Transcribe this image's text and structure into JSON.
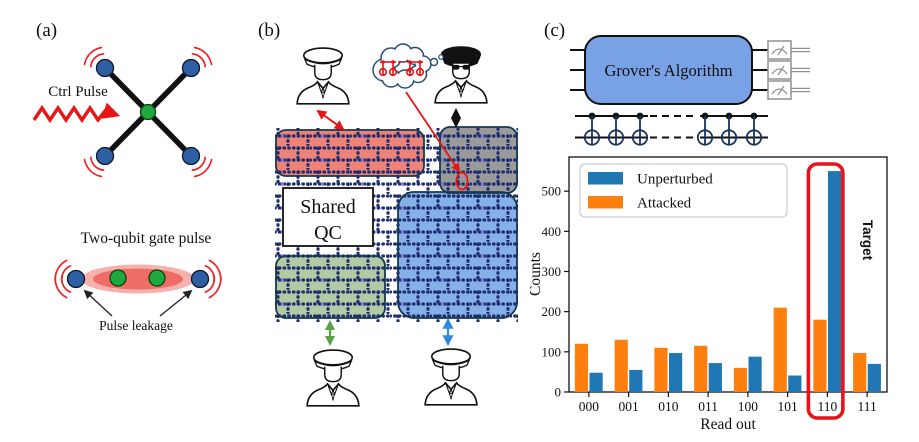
{
  "panel_a": {
    "label": "(a)",
    "ctrl_pulse_label": "Ctrl Pulse",
    "two_qubit_title": "Two-qubit gate pulse",
    "pulse_leakage_label": "Pulse leakage",
    "qubit_color": "#2e5fa3",
    "coupler_color": "#1ea83d",
    "pulse_color": "#e81515"
  },
  "panel_b": {
    "label": "(b)",
    "shared_qc_line1": "Shared",
    "shared_qc_line2": "QC",
    "regions": {
      "user1": {
        "color": "#ef8378"
      },
      "attacker": {
        "color": "#9a9a9a"
      },
      "user3": {
        "color": "#b2cba4"
      },
      "user4": {
        "color": "#85b1e8"
      }
    }
  },
  "panel_c": {
    "label": "(c)",
    "grover_label": "Grover's Algorithm",
    "grover_box_color": "#79a1e6"
  },
  "chart_data": {
    "type": "bar",
    "categories": [
      "000",
      "001",
      "010",
      "011",
      "100",
      "101",
      "110",
      "111"
    ],
    "series": [
      {
        "name": "Unperturbed",
        "color": "#1f77b4",
        "values": [
          48,
          55,
          97,
          72,
          88,
          41,
          550,
          70
        ]
      },
      {
        "name": "Attacked",
        "color": "#ff7f0e",
        "values": [
          120,
          130,
          110,
          115,
          60,
          210,
          180,
          97
        ]
      }
    ],
    "bar_order": [
      "Attacked",
      "Unperturbed"
    ],
    "title": "",
    "xlabel": "Read out",
    "ylabel": "Counts",
    "ylim": [
      0,
      585
    ],
    "yticks": [
      0,
      100,
      200,
      300,
      400,
      500
    ],
    "grid": false,
    "legend_position": "upper-left",
    "highlight": {
      "category": "110",
      "label": "Target",
      "color": "#e8131a"
    }
  }
}
